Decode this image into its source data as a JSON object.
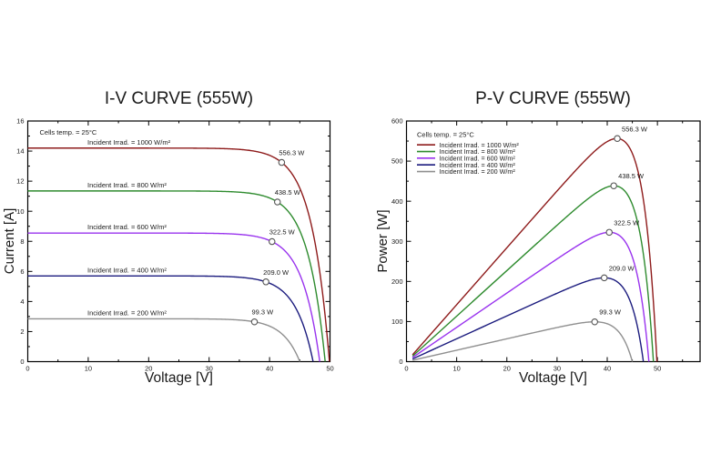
{
  "figure": {
    "background": "#ffffff",
    "axis_color": "#000000",
    "text_color": "#1a1a1a",
    "marker_fill": "#ffffff",
    "marker_stroke": "#555555"
  },
  "chart_data": [
    {
      "type": "line",
      "id": "iv",
      "title": "I-V CURVE (555W)",
      "xlabel": "Voltage [V]",
      "ylabel": "Current [A]",
      "xlim": [
        0,
        50
      ],
      "ylim": [
        0,
        16
      ],
      "x_major_step": 10,
      "x_minor_step": 5,
      "y_major_step": 2,
      "y_minor_step": 1,
      "x_tick_labels": [
        "0",
        "10",
        "20",
        "30",
        "40",
        "50"
      ],
      "y_tick_labels": [
        "0",
        "2",
        "4",
        "6",
        "8",
        "10",
        "12",
        "14",
        "16"
      ],
      "grid": false,
      "annotation": "Cells temp. = 25°C",
      "inline_series_labels": true,
      "legend": null,
      "series": [
        {
          "label": "Incident Irrad. = 1000 W/m²",
          "irradiance_wm2": 1000,
          "color": "#8e1b1b",
          "isc_a": 14.2,
          "voc_v": 49.9,
          "mpp_v": 42.0,
          "mpp_p": 556.3,
          "marker_label": "556.3 W"
        },
        {
          "label": "Incident Irrad. = 800 W/m²",
          "irradiance_wm2": 800,
          "color": "#2e8b2e",
          "isc_a": 11.35,
          "voc_v": 49.2,
          "mpp_v": 41.3,
          "mpp_p": 438.5,
          "marker_label": "438.5 W"
        },
        {
          "label": "Incident Irrad. = 600 W/m²",
          "irradiance_wm2": 600,
          "color": "#9933ee",
          "isc_a": 8.55,
          "voc_v": 48.3,
          "mpp_v": 40.4,
          "mpp_p": 322.5,
          "marker_label": "322.5 W"
        },
        {
          "label": "Incident Irrad. = 400 W/m²",
          "irradiance_wm2": 400,
          "color": "#1b1b7e",
          "isc_a": 5.7,
          "voc_v": 47.2,
          "mpp_v": 39.4,
          "mpp_p": 209.0,
          "marker_label": "209.0 W"
        },
        {
          "label": "Incident Irrad. = 200 W/m²",
          "irradiance_wm2": 200,
          "color": "#8f8f8f",
          "isc_a": 2.85,
          "voc_v": 45.0,
          "mpp_v": 37.5,
          "mpp_p": 99.3,
          "marker_label": "99.3 W"
        }
      ]
    },
    {
      "type": "line",
      "id": "pv",
      "title": "P-V CURVE (555W)",
      "xlabel": "Voltage [V]",
      "ylabel": "Power [W]",
      "xlim": [
        0,
        58.5
      ],
      "ylim": [
        0,
        600
      ],
      "x_major_step": 10,
      "x_minor_step": 5,
      "x_label_max": 50,
      "y_major_step": 100,
      "y_minor_step": 50,
      "x_tick_labels": [
        "0",
        "10",
        "20",
        "30",
        "40",
        "50"
      ],
      "y_tick_labels": [
        "0",
        "100",
        "200",
        "300",
        "400",
        "500",
        "600"
      ],
      "grid": false,
      "v_start": 1.2,
      "inline_series_labels": false,
      "legend": {
        "title": "Cells temp. = 25°C",
        "entries": [
          {
            "label": "Incident Irrad. = 1000 W/m²",
            "color": "#8e1b1b"
          },
          {
            "label": "Incident Irrad. = 800 W/m²",
            "color": "#2e8b2e"
          },
          {
            "label": "Incident Irrad. = 600 W/m²",
            "color": "#9933ee"
          },
          {
            "label": "Incident Irrad. = 400 W/m²",
            "color": "#1b1b7e"
          },
          {
            "label": "Incident Irrad. = 200 W/m²",
            "color": "#8f8f8f"
          }
        ]
      },
      "series": [
        {
          "label": "Incident Irrad. = 1000 W/m²",
          "irradiance_wm2": 1000,
          "color": "#8e1b1b",
          "isc_a": 14.2,
          "voc_v": 49.9,
          "mpp_v": 42.0,
          "mpp_p": 556.3,
          "marker_label": "556.3 W"
        },
        {
          "label": "Incident Irrad. = 800 W/m²",
          "irradiance_wm2": 800,
          "color": "#2e8b2e",
          "isc_a": 11.35,
          "voc_v": 49.2,
          "mpp_v": 41.3,
          "mpp_p": 438.5,
          "marker_label": "438.5 W"
        },
        {
          "label": "Incident Irrad. = 600 W/m²",
          "irradiance_wm2": 600,
          "color": "#9933ee",
          "isc_a": 8.55,
          "voc_v": 48.3,
          "mpp_v": 40.4,
          "mpp_p": 322.5,
          "marker_label": "322.5 W"
        },
        {
          "label": "Incident Irrad. = 400 W/m²",
          "irradiance_wm2": 400,
          "color": "#1b1b7e",
          "isc_a": 5.7,
          "voc_v": 47.2,
          "mpp_v": 39.4,
          "mpp_p": 209.0,
          "marker_label": "209.0 W"
        },
        {
          "label": "Incident Irrad. = 200 W/m²",
          "irradiance_wm2": 200,
          "color": "#8f8f8f",
          "isc_a": 2.85,
          "voc_v": 45.0,
          "mpp_v": 37.5,
          "mpp_p": 99.3,
          "marker_label": "99.3 W"
        }
      ]
    }
  ]
}
